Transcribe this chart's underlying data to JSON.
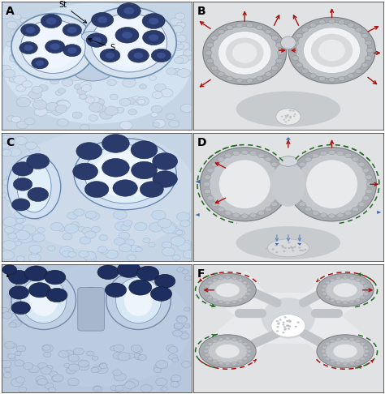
{
  "figure_size": [
    4.74,
    4.86
  ],
  "dpi": 100,
  "bg_color": "#ffffff",
  "panel_labels": [
    "A",
    "B",
    "C",
    "D",
    "E",
    "F"
  ],
  "label_fontsize": 10,
  "label_fontweight": "bold",
  "panel_bg_A": "#c8d8e8",
  "panel_bg_C": "#c8d8e8",
  "panel_bg_E": "#b8c8dc",
  "diagram_bg_B": "#dcdee0",
  "diagram_bg_D": "#dcdee0",
  "diagram_bg_F": "#dcdee0",
  "tissue_outer": "#9a9ea2",
  "tissue_mid": "#c4c8cc",
  "tissue_inner_white": "#e8eaec",
  "tissue_white": "#f4f4f4",
  "lobe_wall_gray": "#8a8e92",
  "lobe_wall_texture": "#b0b4b8",
  "connective_gray": "#b8bcbf",
  "stomium_light": "#d0d3d6",
  "red_arrow": "#aa1111",
  "green_arrow": "#226622",
  "blue_arrow_tri": "#4466aa",
  "blue_arrow_line": "#6688bb",
  "cell_dark_blue": "#2a3a6a",
  "cell_mid_blue": "#3a5090",
  "cell_light_blue": "#6878b0",
  "tissue_blue_light": "#d0dcea",
  "micro_cell_edge": "#9aaccc",
  "micro_bg": "#c5d5e5"
}
